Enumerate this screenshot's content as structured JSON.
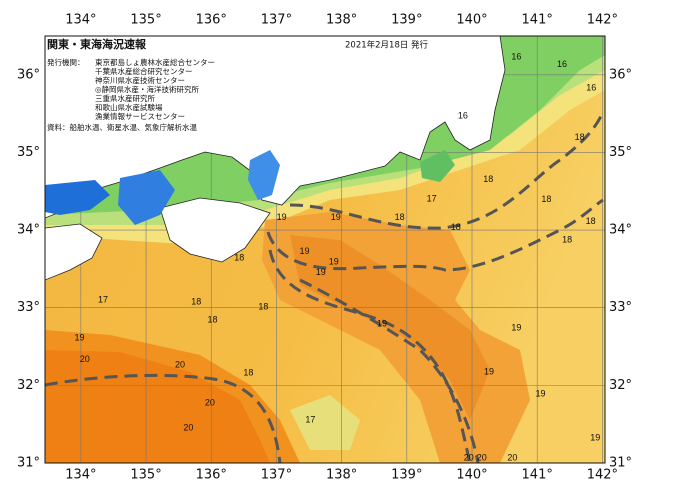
{
  "header": {
    "title": "関東・東海海況速報",
    "date": "2021年2月18日 発行",
    "issuer_heading": "発行機関：",
    "issuers": [
      "東京都島しょ農林水産総合センター",
      "千葉県水産総合研究センター",
      "神奈川県水産技術センター",
      "◎静岡県水産・海洋技術研究所",
      "三重県水産研究所",
      "和歌山県水産試験場",
      "漁業情報サービスセンター"
    ],
    "sources": "資料：船舶水温、衛星水温、気象庁解析水温"
  },
  "map": {
    "xlim": [
      133.45,
      142.04
    ],
    "ylim": [
      31,
      36.5
    ],
    "xticks": [
      {
        "value": 134,
        "label": "134°"
      },
      {
        "value": 135,
        "label": "135°"
      },
      {
        "value": 136,
        "label": "136°"
      },
      {
        "value": 137,
        "label": "137°"
      },
      {
        "value": 138,
        "label": "138°"
      },
      {
        "value": 139,
        "label": "139°"
      },
      {
        "value": 140,
        "label": "140°"
      },
      {
        "value": 141,
        "label": "141°"
      },
      {
        "value": 142,
        "label": "142°"
      }
    ],
    "yticks": [
      {
        "value": 36,
        "label": "36°"
      },
      {
        "value": 35,
        "label": "35°"
      },
      {
        "value": 34,
        "label": "34°"
      },
      {
        "value": 33,
        "label": "33°"
      },
      {
        "value": 32,
        "label": "32°"
      },
      {
        "value": 31,
        "label": "31°"
      }
    ],
    "contour_labels": [
      {
        "value": 16,
        "lon": 140.68,
        "lat": 36.23
      },
      {
        "value": 16,
        "lon": 141.38,
        "lat": 36.13
      },
      {
        "value": 16,
        "lon": 141.83,
        "lat": 35.83
      },
      {
        "value": 16,
        "lon": 139.86,
        "lat": 35.47
      },
      {
        "value": 18,
        "lon": 141.65,
        "lat": 35.19
      },
      {
        "value": 18,
        "lon": 140.25,
        "lat": 34.65
      },
      {
        "value": 18,
        "lon": 141.14,
        "lat": 34.39
      },
      {
        "value": 17,
        "lon": 139.38,
        "lat": 34.4
      },
      {
        "value": 18,
        "lon": 138.89,
        "lat": 34.16
      },
      {
        "value": 18,
        "lon": 139.75,
        "lat": 34.03
      },
      {
        "value": 18,
        "lon": 141.46,
        "lat": 33.87
      },
      {
        "value": 18,
        "lon": 141.82,
        "lat": 34.11
      },
      {
        "value": 19,
        "lon": 137.08,
        "lat": 34.16
      },
      {
        "value": 19,
        "lon": 137.91,
        "lat": 34.16
      },
      {
        "value": 19,
        "lon": 137.43,
        "lat": 33.72
      },
      {
        "value": 19,
        "lon": 137.88,
        "lat": 33.59
      },
      {
        "value": 19,
        "lon": 137.68,
        "lat": 33.45
      },
      {
        "value": 18,
        "lon": 136.43,
        "lat": 33.64
      },
      {
        "value": 18,
        "lon": 135.77,
        "lat": 33.07
      },
      {
        "value": 18,
        "lon": 136.8,
        "lat": 33.01
      },
      {
        "value": 18,
        "lon": 136.02,
        "lat": 32.84
      },
      {
        "value": 17,
        "lon": 134.34,
        "lat": 33.1
      },
      {
        "value": 19,
        "lon": 138.62,
        "lat": 32.79
      },
      {
        "value": 19,
        "lon": 140.68,
        "lat": 32.74
      },
      {
        "value": 19,
        "lon": 140.26,
        "lat": 32.17
      },
      {
        "value": 19,
        "lon": 141.05,
        "lat": 31.89
      },
      {
        "value": 19,
        "lon": 133.98,
        "lat": 32.61
      },
      {
        "value": 20,
        "lon": 134.06,
        "lat": 32.33
      },
      {
        "value": 20,
        "lon": 135.52,
        "lat": 32.26
      },
      {
        "value": 18,
        "lon": 136.57,
        "lat": 32.16
      },
      {
        "value": 20,
        "lon": 135.98,
        "lat": 31.77
      },
      {
        "value": 20,
        "lon": 135.65,
        "lat": 31.45
      },
      {
        "value": 17,
        "lon": 137.52,
        "lat": 31.55
      },
      {
        "value": 20,
        "lon": 139.95,
        "lat": 31.06
      },
      {
        "value": 20,
        "lon": 140.15,
        "lat": 31.06
      },
      {
        "value": 20,
        "lon": 140.62,
        "lat": 31.06
      },
      {
        "value": 19,
        "lon": 141.89,
        "lat": 31.32
      }
    ]
  }
}
